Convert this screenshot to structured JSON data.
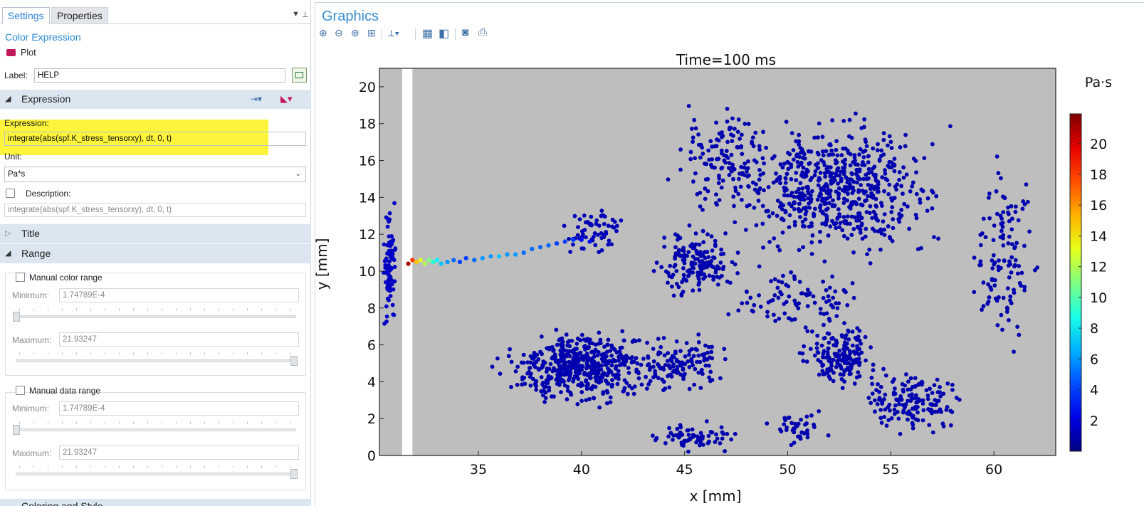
{
  "tabs": {
    "settings": "Settings",
    "properties": "Properties"
  },
  "settings": {
    "heading": "Color Expression",
    "plot_button": "Plot",
    "label_caption": "Label:",
    "label_value": "HELP"
  },
  "expression_section": {
    "title": "Expression",
    "expression_caption": "Expression:",
    "expression_value": "integrate(abs(spf.K_stress_tensorxy), dt, 0, t)",
    "unit_caption": "Unit:",
    "unit_value": "Pa*s",
    "description_caption": "Description:",
    "description_value": "integrate(abs(spf.K_stress_tensorxy), dt, 0, t)"
  },
  "title_section": {
    "title": "Title"
  },
  "range_section": {
    "title": "Range",
    "manual_color_range": "Manual color range",
    "manual_data_range": "Manual data range",
    "minimum_caption": "Minimum:",
    "maximum_caption": "Maximum:",
    "color_min": "1.74789E-4",
    "color_max": "21.93247",
    "data_min": "1.74789E-4",
    "data_max": "21.93247",
    "next_section_partial": "Coloring and Style"
  },
  "graphics": {
    "title": "Graphics",
    "icons": [
      "zoom-in-icon",
      "zoom-out-icon",
      "zoom-box-icon",
      "zoom-extents-icon",
      "axes-icon",
      "grid-icon",
      "legend-icon",
      "camera-icon",
      "print-icon"
    ]
  },
  "colors": {
    "plot_background": "#bebebe",
    "point_low": "#0a1ee8",
    "accent_blue": "#2a8ad4",
    "highlight": "#fcf53b"
  },
  "chart_data": {
    "type": "scatter",
    "title": "Time=100 ms",
    "xlabel": "x [mm]",
    "ylabel": "y [mm]",
    "xlim": [
      30.2,
      63.0
    ],
    "ylim": [
      0,
      21
    ],
    "xticks": [
      35,
      40,
      45,
      50,
      55,
      60
    ],
    "yticks": [
      0,
      2,
      4,
      6,
      8,
      10,
      12,
      14,
      16,
      18,
      20
    ],
    "grid": false,
    "wall": {
      "x_from": 31.3,
      "x_to": 31.8
    },
    "colorbar": {
      "unit": "Pa·s",
      "min": 0.000174789,
      "max": 21.93247,
      "ticks": [
        2,
        4,
        6,
        8,
        10,
        12,
        14,
        16,
        18,
        20
      ],
      "colormap": "jet"
    },
    "jet_points": [
      [
        31.6,
        10.4,
        21
      ],
      [
        31.8,
        10.6,
        18
      ],
      [
        32.0,
        10.5,
        15
      ],
      [
        32.2,
        10.6,
        13
      ],
      [
        32.4,
        10.4,
        12
      ],
      [
        32.6,
        10.6,
        11
      ],
      [
        32.8,
        10.5,
        9
      ],
      [
        33.0,
        10.6,
        8
      ],
      [
        33.2,
        10.4,
        7
      ],
      [
        33.5,
        10.5,
        6
      ],
      [
        33.8,
        10.6,
        5
      ],
      [
        34.1,
        10.5,
        4
      ],
      [
        34.4,
        10.7,
        4
      ],
      [
        34.8,
        10.6,
        5
      ],
      [
        35.2,
        10.7,
        6
      ],
      [
        35.6,
        10.8,
        6
      ],
      [
        36.0,
        10.8,
        7
      ],
      [
        36.4,
        10.9,
        6
      ],
      [
        36.8,
        10.9,
        6
      ],
      [
        37.2,
        11.0,
        5
      ],
      [
        37.6,
        11.2,
        5
      ],
      [
        38.0,
        11.3,
        5
      ],
      [
        38.4,
        11.4,
        5
      ],
      [
        38.8,
        11.5,
        4
      ],
      [
        39.2,
        11.6,
        4
      ],
      [
        39.6,
        11.7,
        4
      ],
      [
        40.0,
        11.7,
        3
      ],
      [
        40.4,
        11.6,
        3
      ]
    ],
    "clusters": [
      {
        "center": [
          30.7,
          10.5
        ],
        "spread": [
          0.3,
          3.2
        ],
        "count": 80,
        "value": 1.5
      },
      {
        "center": [
          40.5,
          12.0
        ],
        "spread": [
          1.5,
          1.5
        ],
        "count": 60,
        "value": 1.2
      },
      {
        "center": [
          45.5,
          10.5
        ],
        "spread": [
          2.0,
          1.8
        ],
        "count": 160,
        "value": 1.0
      },
      {
        "center": [
          52.5,
          14.5
        ],
        "spread": [
          4.5,
          3.5
        ],
        "count": 600,
        "value": 1.0
      },
      {
        "center": [
          47.0,
          16.0
        ],
        "spread": [
          2.5,
          3.0
        ],
        "count": 140,
        "value": 1.0
      },
      {
        "center": [
          60.5,
          11.0
        ],
        "spread": [
          1.5,
          5.0
        ],
        "count": 120,
        "value": 1.0
      },
      {
        "center": [
          40.0,
          4.8
        ],
        "spread": [
          3.5,
          1.8
        ],
        "count": 520,
        "value": 1.0
      },
      {
        "center": [
          45.0,
          5.0
        ],
        "spread": [
          2.0,
          1.5
        ],
        "count": 120,
        "value": 1.0
      },
      {
        "center": [
          52.5,
          5.5
        ],
        "spread": [
          1.8,
          1.8
        ],
        "count": 160,
        "value": 1.0
      },
      {
        "center": [
          56.0,
          3.0
        ],
        "spread": [
          2.5,
          1.8
        ],
        "count": 160,
        "value": 1.0
      },
      {
        "center": [
          45.5,
          1.0
        ],
        "spread": [
          2.0,
          0.8
        ],
        "count": 70,
        "value": 1.0
      },
      {
        "center": [
          50.5,
          1.5
        ],
        "spread": [
          1.5,
          1.0
        ],
        "count": 40,
        "value": 1.0
      },
      {
        "center": [
          51.0,
          8.5
        ],
        "spread": [
          3.5,
          1.5
        ],
        "count": 90,
        "value": 1.0
      }
    ]
  }
}
